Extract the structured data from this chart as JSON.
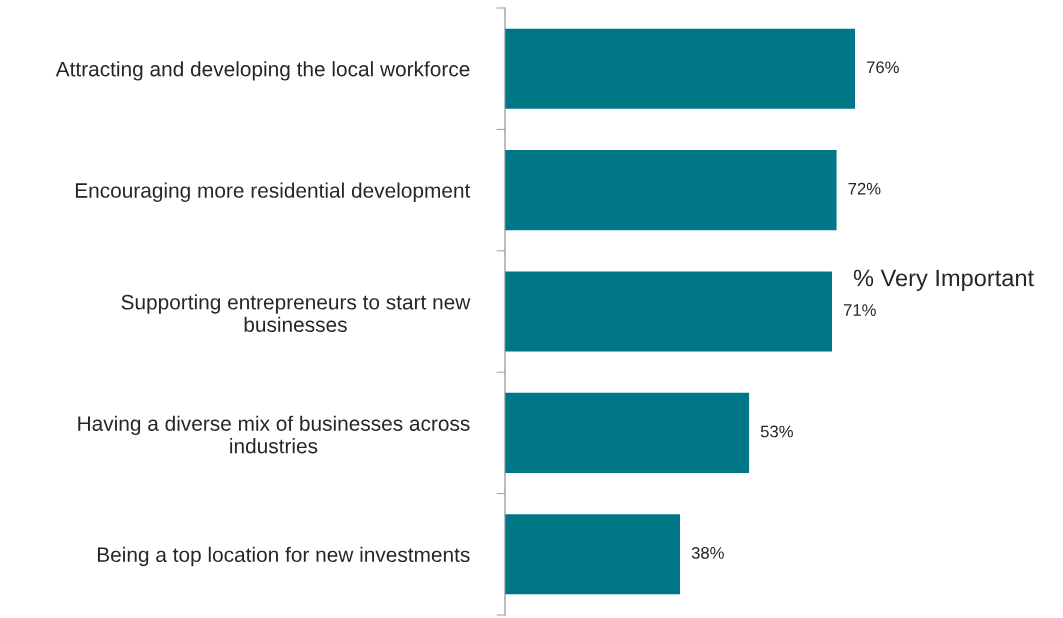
{
  "chart_data": {
    "type": "bar",
    "orientation": "horizontal",
    "categories": [
      "Attracting and developing the local workforce",
      "Encouraging more residential development",
      "Supporting entrepreneurs to start new\nbusinesses",
      "Having a diverse mix of businesses across\nindustries",
      "Being a top location for new investments"
    ],
    "values": [
      76,
      72,
      71,
      53,
      38
    ],
    "value_labels": [
      "76%",
      "72%",
      "71%",
      "53%",
      "38%"
    ],
    "color": "#007786",
    "annotations": [
      "% Very Important"
    ]
  }
}
